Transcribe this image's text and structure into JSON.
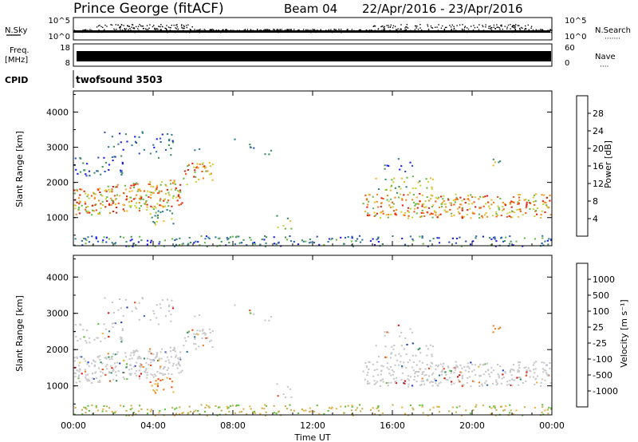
{
  "header": {
    "station": "Prince George (fitACF)",
    "beam": "Beam 04",
    "date_range": "22/Apr/2016 - 23/Apr/2016"
  },
  "labels": {
    "nsky": "N.Sky",
    "nsearch": "N.Search",
    "nsearch_dots": "·······",
    "freq": "Freq.",
    "freq_unit": "[MHz]",
    "nave": "Nave",
    "nave_dots": "····",
    "cpid": "CPID",
    "cpid_value": "twofsound 3503",
    "time_axis": "Time UT"
  },
  "small_axes": {
    "noise_left": [
      "10^5",
      "10^0"
    ],
    "noise_right": [
      "10^5",
      "10^0"
    ],
    "freq_left": [
      "18",
      "8"
    ],
    "freq_right": [
      "60",
      "0"
    ]
  },
  "chart_data": [
    {
      "type": "heatmap",
      "title": "",
      "ylabel": "Slant Range [km]",
      "xlabel": "Time UT",
      "x_ticks": [
        "00:00",
        "04:00",
        "08:00",
        "12:00",
        "16:00",
        "20:00",
        "00:00"
      ],
      "y_ticks": [
        "1000",
        "2000",
        "3000",
        "4000"
      ],
      "ylim": [
        200,
        4600
      ],
      "colorbar": {
        "label": "Power [dB]",
        "ticks": [
          "4",
          "8",
          "12",
          "16",
          "20",
          "24",
          "28"
        ],
        "colors": [
          "#1c1cf2",
          "#2a55b8",
          "#2f7a9a",
          "#3d8f5e",
          "#6bb84a",
          "#c8d43a",
          "#f2b82e",
          "#f08a1e",
          "#ec5a18",
          "#e02010"
        ]
      }
    },
    {
      "type": "heatmap",
      "title": "",
      "ylabel": "Slant Range [km]",
      "xlabel": "Time UT",
      "x_ticks": [
        "00:00",
        "04:00",
        "08:00",
        "12:00",
        "16:00",
        "20:00",
        "00:00"
      ],
      "y_ticks": [
        "1000",
        "2000",
        "3000",
        "4000"
      ],
      "ylim": [
        200,
        4600
      ],
      "colorbar": {
        "label": "Velocity [m s⁻¹]",
        "ticks": [
          "1000",
          "500",
          "100",
          "25",
          "-25",
          "-100",
          "-500",
          "-1000"
        ],
        "colors": [
          "#1a3ec8",
          "#2e6aa8",
          "#2f8a5a",
          "#5ec23a",
          "#c8c8c8",
          "#f0b040",
          "#f08020",
          "#e84a10",
          "#e01010"
        ]
      }
    }
  ],
  "colors": {
    "gray": "#c8c8c8",
    "ground": "#c8b050"
  }
}
